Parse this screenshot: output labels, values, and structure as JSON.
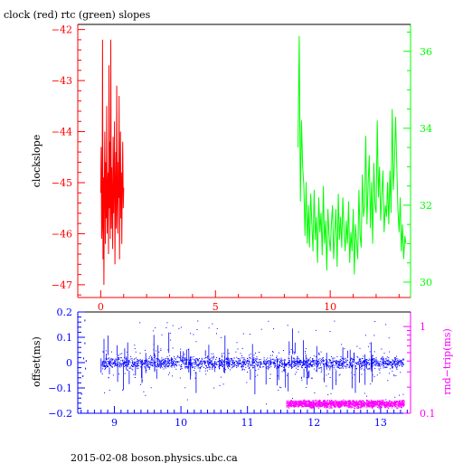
{
  "title": "clock (red) rtc (green) slopes",
  "footer": "2015-02-08  boson.physics.ubc.ca",
  "colors": {
    "red": "#ff0000",
    "green": "#00ff00",
    "blue": "#0000ff",
    "magenta": "#ff00ff",
    "black": "#000000"
  },
  "chart_data": [
    {
      "type": "line",
      "title": "clock (red) rtc (green) slopes",
      "ylabel": "clockslope",
      "y2label": "",
      "xlim": [
        -1,
        13.5
      ],
      "ylim": [
        -47.25,
        -41.9
      ],
      "y2lim": [
        29.6,
        36.7
      ],
      "x_ticks": [
        0,
        5,
        10
      ],
      "y_ticks": [
        -42,
        -43,
        -44,
        -45,
        -46,
        -47
      ],
      "y2_ticks": [
        30,
        32,
        34,
        36
      ],
      "series": [
        {
          "color": "#ff0000",
          "axis": "left",
          "x": [
            0.0,
            0.02,
            0.04,
            0.06,
            0.08,
            0.1,
            0.12,
            0.14,
            0.16,
            0.18,
            0.2,
            0.22,
            0.24,
            0.26,
            0.28,
            0.3,
            0.32,
            0.34,
            0.36,
            0.38,
            0.4,
            0.42,
            0.44,
            0.46,
            0.48,
            0.5,
            0.52,
            0.54,
            0.56,
            0.58,
            0.6,
            0.62,
            0.64,
            0.66,
            0.68,
            0.7,
            0.72,
            0.74,
            0.76,
            0.78,
            0.8,
            0.82,
            0.84,
            0.86,
            0.88,
            0.9,
            0.92,
            0.94,
            0.96,
            0.98,
            1.0
          ],
          "y": [
            -45.2,
            -44.3,
            -46.1,
            -45.8,
            -42.2,
            -46.5,
            -44.9,
            -47.0,
            -45.0,
            -44.0,
            -46.2,
            -44.6,
            -45.7,
            -43.5,
            -46.0,
            -45.1,
            -44.8,
            -46.4,
            -42.7,
            -45.5,
            -44.2,
            -46.1,
            -42.2,
            -45.9,
            -44.7,
            -45.3,
            -46.3,
            -44.1,
            -45.6,
            -45.0,
            -43.8,
            -46.6,
            -45.2,
            -44.4,
            -45.9,
            -43.1,
            -45.4,
            -46.0,
            -44.6,
            -45.3,
            -43.3,
            -46.5,
            -45.1,
            -44.0,
            -45.7,
            -44.8,
            -46.2,
            -45.0,
            -44.2,
            -45.5,
            -45.1
          ]
        },
        {
          "color": "#00ff00",
          "axis": "right",
          "x": [
            8.6,
            8.65,
            8.7,
            8.75,
            8.8,
            8.85,
            8.9,
            8.95,
            9.0,
            9.05,
            9.1,
            9.15,
            9.2,
            9.25,
            9.3,
            9.35,
            9.4,
            9.45,
            9.5,
            9.55,
            9.6,
            9.65,
            9.7,
            9.75,
            9.8,
            9.85,
            9.9,
            9.95,
            10.0,
            10.05,
            10.1,
            10.15,
            10.2,
            10.25,
            10.3,
            10.35,
            10.4,
            10.45,
            10.5,
            10.55,
            10.6,
            10.65,
            10.7,
            10.75,
            10.8,
            10.85,
            10.9,
            10.95,
            11.0,
            11.05,
            11.1,
            11.15,
            11.2,
            11.25,
            11.3,
            11.35,
            11.4,
            11.45,
            11.5,
            11.55,
            11.6,
            11.65,
            11.7,
            11.75,
            11.8,
            11.85,
            11.9,
            11.95,
            12.0,
            12.05,
            12.1,
            12.15,
            12.2,
            12.25,
            12.3,
            12.35,
            12.4,
            12.45,
            12.5,
            12.55,
            12.6,
            12.65,
            12.7,
            12.75,
            12.8,
            12.85,
            12.9,
            12.95,
            13.0,
            13.05,
            13.1,
            13.15,
            13.2,
            13.25,
            13.3
          ],
          "y": [
            33.5,
            36.4,
            32.1,
            34.2,
            33.0,
            32.5,
            31.2,
            32.6,
            31.0,
            32.0,
            30.9,
            32.3,
            31.5,
            30.8,
            32.4,
            31.1,
            31.7,
            30.5,
            32.2,
            31.3,
            31.8,
            30.7,
            32.5,
            31.0,
            31.6,
            30.3,
            31.9,
            31.2,
            30.8,
            31.5,
            32.0,
            30.6,
            31.3,
            31.9,
            30.4,
            32.3,
            31.1,
            31.7,
            30.9,
            32.2,
            31.4,
            30.8,
            31.6,
            31.0,
            32.1,
            30.5,
            31.3,
            30.8,
            31.9,
            30.2,
            31.5,
            31.0,
            30.6,
            32.4,
            31.2,
            30.9,
            32.8,
            31.7,
            32.0,
            33.8,
            31.5,
            32.5,
            33.3,
            31.4,
            32.6,
            31.0,
            33.1,
            32.0,
            31.8,
            34.2,
            32.2,
            33.0,
            31.6,
            32.3,
            32.9,
            31.3,
            32.0,
            31.7,
            32.6,
            31.5,
            32.9,
            31.8,
            34.5,
            32.4,
            33.1,
            34.3,
            33.0,
            31.9,
            31.3,
            32.2,
            30.8,
            31.5,
            30.6,
            31.2,
            31.0
          ]
        }
      ]
    },
    {
      "type": "scatter",
      "ylabel": "offset(ms)",
      "y2label": "rnd−trip(ms)",
      "xlim": [
        8.45,
        13.45
      ],
      "ylim": [
        -0.2,
        0.2
      ],
      "y2lim_log": [
        0.1,
        1.47
      ],
      "x_ticks": [
        9,
        10,
        11,
        12,
        13
      ],
      "y_ticks": [
        0.2,
        0.1,
        0,
        -0.1,
        -0.2
      ],
      "y2_ticks": [
        1,
        0.1
      ],
      "series": [
        {
          "color": "#0000ff",
          "axis": "left",
          "band_center": 0.0,
          "band_halfwidth": 0.022,
          "x_range": [
            8.8,
            13.35
          ],
          "pre_points": {
            "x": [
              8.5,
              8.52,
              8.53,
              8.55,
              8.55,
              8.56,
              8.57
            ],
            "y": [
              -0.12,
              -0.05,
              0.02,
              0.08,
              0.17,
              -0.02,
              0.01
            ]
          }
        },
        {
          "color": "#ff00ff",
          "axis": "right",
          "band_center": 0.13,
          "band_halfwidth": 0.015,
          "x_range": [
            11.58,
            13.35
          ]
        }
      ]
    }
  ]
}
